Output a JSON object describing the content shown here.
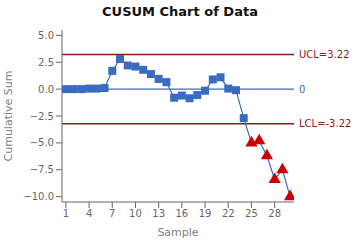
{
  "chart_data": {
    "type": "line",
    "title": "CUSUM Chart of Data",
    "xlabel": "Sample",
    "ylabel": "Cumulative Sum",
    "x": [
      1,
      2,
      3,
      4,
      5,
      6,
      7,
      8,
      9,
      10,
      11,
      12,
      13,
      14,
      15,
      16,
      17,
      18,
      19,
      20,
      21,
      22,
      23,
      24,
      25,
      26,
      27,
      28,
      29,
      30
    ],
    "series": [
      {
        "type": "line",
        "color": "#3A6BBF",
        "values": [
          0.0,
          0.0,
          0.0,
          0.05,
          0.05,
          0.1,
          1.7,
          2.8,
          2.2,
          2.1,
          1.8,
          1.4,
          0.95,
          0.65,
          -0.8,
          -0.6,
          -0.85,
          -0.55,
          -0.15,
          0.9,
          1.1,
          0.05,
          -0.1,
          -2.7,
          -5.0,
          -4.8,
          -6.2,
          -8.4,
          -7.5,
          -10.0
        ]
      },
      {
        "type": "scatter",
        "color": "#3A6BBF",
        "marker": "square",
        "values": [
          0.0,
          0.0,
          0.0,
          0.05,
          0.05,
          0.1,
          1.7,
          2.8,
          2.2,
          2.1,
          1.8,
          1.4,
          0.95,
          0.65,
          -0.8,
          -0.6,
          -0.85,
          -0.55,
          -0.15,
          0.9,
          1.1,
          0.05,
          -0.1,
          -2.7,
          null,
          null,
          null,
          null,
          null,
          null
        ]
      },
      {
        "type": "scatter",
        "color": "#CC0000",
        "marker": "triangle",
        "values": [
          null,
          null,
          null,
          null,
          null,
          null,
          null,
          null,
          null,
          null,
          null,
          null,
          null,
          null,
          null,
          null,
          null,
          null,
          null,
          null,
          null,
          null,
          null,
          null,
          -5.0,
          -4.8,
          -6.2,
          -8.4,
          -7.5,
          -10.0
        ]
      }
    ],
    "reference_lines": [
      {
        "value": 3.22,
        "label": "UCL=3.22",
        "color": "#8B1A1A"
      },
      {
        "value": 0,
        "label": "0",
        "color": "#3A6BBF"
      },
      {
        "value": -3.22,
        "label": "LCL=-3.22",
        "color": "#8B1A1A"
      }
    ],
    "xlim": [
      0.5,
      30.5
    ],
    "xticks": [
      1,
      4,
      7,
      10,
      13,
      16,
      19,
      22,
      25,
      28
    ],
    "ylim": [
      -10.5,
      5.5
    ],
    "yticks": [
      {
        "value": 5.0,
        "label": "5.0"
      },
      {
        "value": 2.5,
        "label": "2.5"
      },
      {
        "value": 0.0,
        "label": "0.0"
      },
      {
        "value": -2.5,
        "label": "−2.5"
      },
      {
        "value": -5.0,
        "label": "−5.0"
      },
      {
        "value": -7.5,
        "label": "−7.5"
      },
      {
        "value": -10.0,
        "label": "−10.0"
      }
    ],
    "grid": false
  }
}
